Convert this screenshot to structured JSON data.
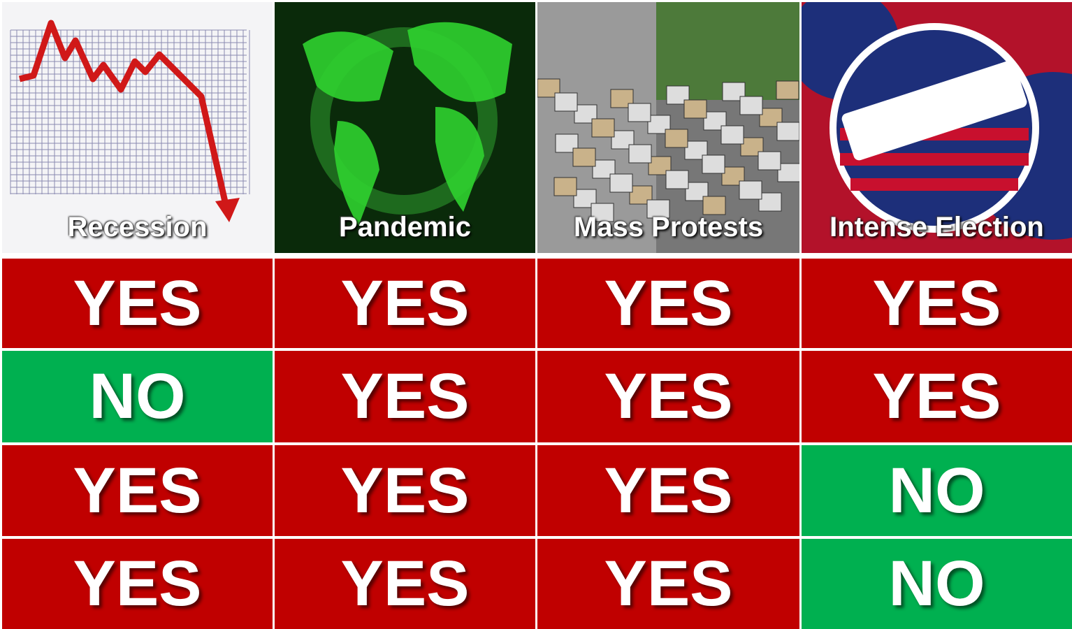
{
  "headers": [
    "Recession",
    "Pandemic",
    "Mass Protests",
    "Intense Election"
  ],
  "rows": [
    [
      "YES",
      "YES",
      "YES",
      "YES"
    ],
    [
      "NO",
      "YES",
      "YES",
      "YES"
    ],
    [
      "YES",
      "YES",
      "YES",
      "NO"
    ],
    [
      "YES",
      "YES",
      "YES",
      "NO"
    ]
  ],
  "cell_colors": {
    "YES": "#c00000",
    "NO": "#00b050"
  }
}
